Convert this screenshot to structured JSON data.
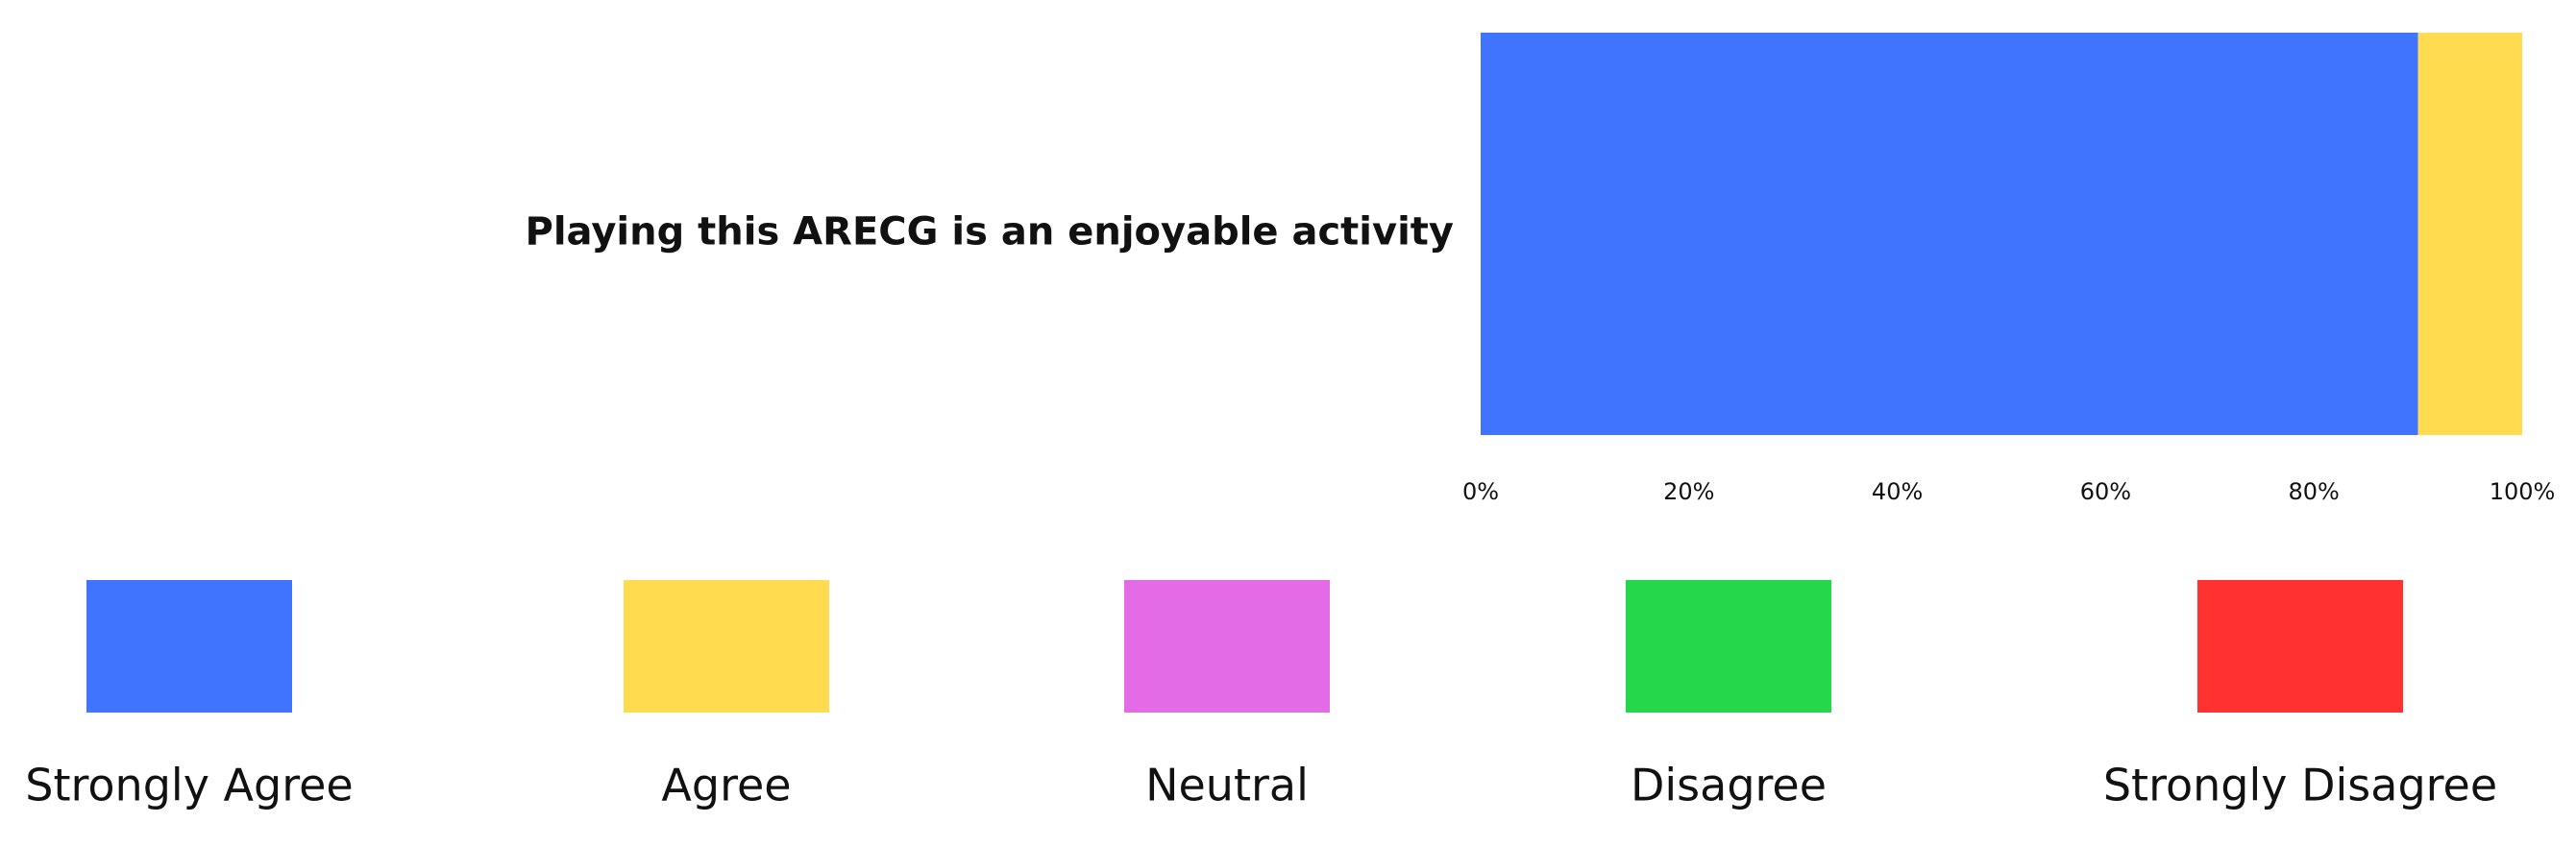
{
  "chart_data": {
    "type": "stacked-bar-horizontal",
    "categories": [
      "Playing this ARECG is an enjoyable activity"
    ],
    "series": [
      {
        "name": "Strongly Agree",
        "color": "#4174fe",
        "values": [
          90
        ]
      },
      {
        "name": "Agree",
        "color": "#ffdc4f",
        "values": [
          10
        ]
      },
      {
        "name": "Neutral",
        "color": "#e36ce6",
        "values": [
          0
        ]
      },
      {
        "name": "Disagree",
        "color": "#25d84b",
        "values": [
          0
        ]
      },
      {
        "name": "Strongly Disagree",
        "color": "#ff3131",
        "values": [
          0
        ]
      }
    ],
    "xlim": [
      0,
      100
    ],
    "xticks": [
      {
        "value": 0,
        "label": "0%"
      },
      {
        "value": 20,
        "label": "20%"
      },
      {
        "value": 40,
        "label": "40%"
      },
      {
        "value": 60,
        "label": "60%"
      },
      {
        "value": 80,
        "label": "80%"
      },
      {
        "value": 100,
        "label": "100%"
      }
    ],
    "legend": "bottom"
  }
}
